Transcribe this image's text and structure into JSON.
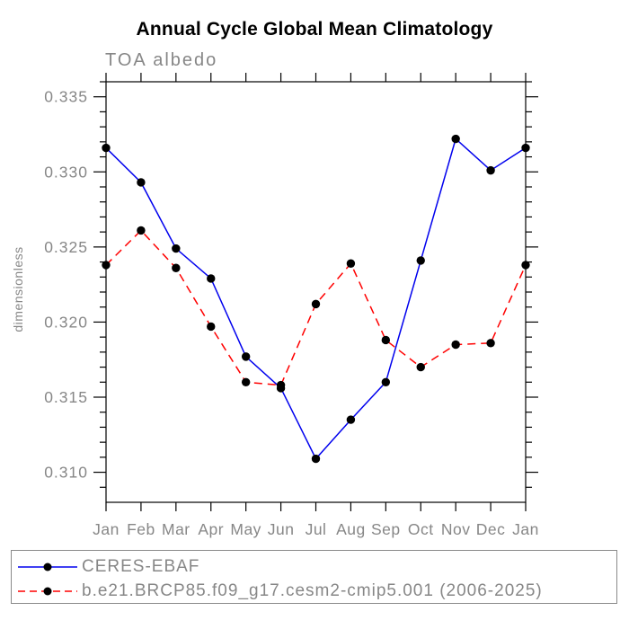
{
  "chart_data": {
    "type": "line",
    "title": "Annual Cycle Global Mean Climatology",
    "subtitle": "TOA albedo",
    "ylabel": "dimensionless",
    "categories": [
      "Jan",
      "Feb",
      "Mar",
      "Apr",
      "May",
      "Jun",
      "Jul",
      "Aug",
      "Sep",
      "Oct",
      "Nov",
      "Dec",
      "Jan"
    ],
    "series": [
      {
        "name": "CERES-EBAF",
        "color": "#0000ee",
        "line_style": "solid",
        "marker": "filled-circle",
        "marker_color": "#000000",
        "values": [
          0.3316,
          0.3293,
          0.3249,
          0.3229,
          0.3177,
          0.3156,
          0.3109,
          0.3135,
          0.316,
          0.3241,
          0.3322,
          0.3301,
          0.3316
        ]
      },
      {
        "name": "b.e21.BRCP85.f09_g17.cesm2-cmip5.001 (2006-2025)",
        "color": "#ff0000",
        "line_style": "dashed",
        "marker": "filled-circle",
        "marker_color": "#000000",
        "values": [
          0.3238,
          0.3261,
          0.3236,
          0.3197,
          0.316,
          0.3158,
          0.3212,
          0.3239,
          0.3188,
          0.317,
          0.3185,
          0.3186,
          0.3238
        ]
      }
    ],
    "ylim": [
      0.308,
      0.336
    ],
    "ytick_major_start": 0.31,
    "ytick_major_end": 0.335,
    "ytick_major_step": 0.005,
    "ytick_minor_step": 0.001,
    "ytick_labels": [
      "0.310",
      "0.315",
      "0.320",
      "0.325",
      "0.330",
      "0.335"
    ],
    "grid": false,
    "legend_position": "bottom",
    "colors": {
      "axis": "#000000",
      "labels": "#878787",
      "title": "#000000",
      "legend_border": "#8a8a8a"
    }
  }
}
